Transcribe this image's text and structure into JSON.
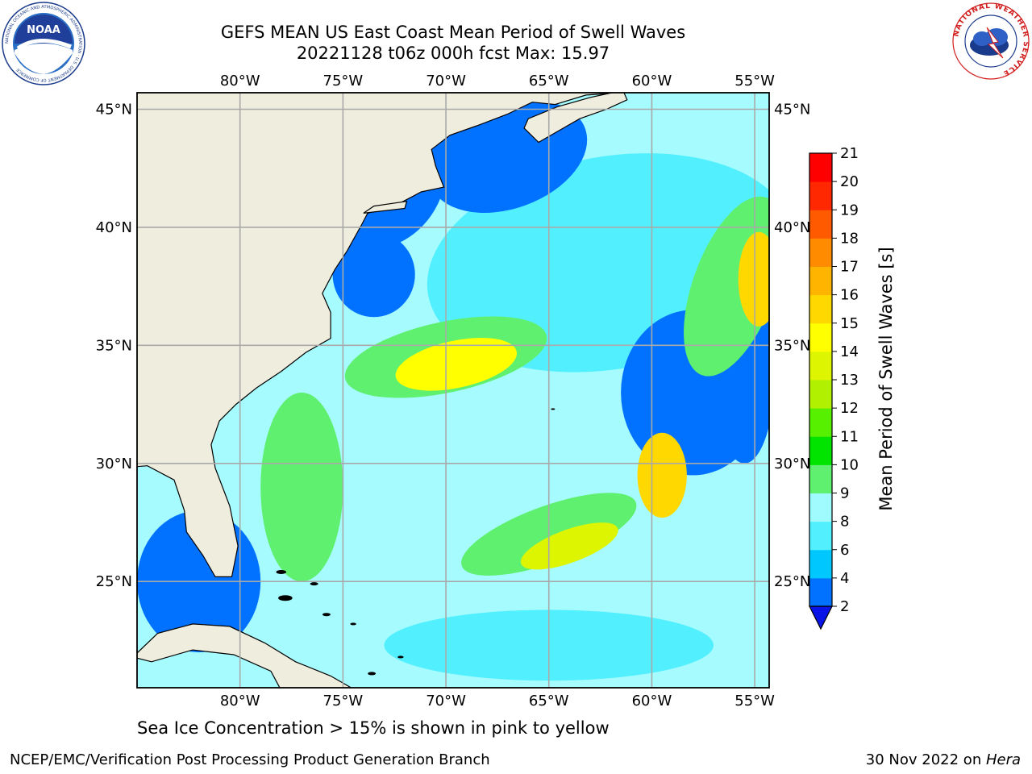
{
  "header": {
    "title_line1": "GEFS MEAN US East Coast Mean Period of Swell Waves",
    "title_line2": "20221128 t06z 000h fcst   Max: 15.97"
  },
  "logos": {
    "left": "noaa-logo",
    "left_text": "NOAA",
    "left_ring_text": "NATIONAL OCEANIC AND ATMOSPHERIC ADMINISTRATION · U.S. DEPARTMENT OF COMMERCE",
    "right": "nws-logo",
    "right_ring_text": "NATIONAL WEATHER SERVICE"
  },
  "map": {
    "lon_labels": [
      "80°W",
      "75°W",
      "70°W",
      "65°W",
      "60°W",
      "55°W"
    ],
    "lat_labels": [
      "45°N",
      "40°N",
      "35°N",
      "30°N",
      "25°N"
    ],
    "lon_values": [
      -80,
      -75,
      -70,
      -65,
      -60,
      -55
    ],
    "lat_values": [
      45,
      40,
      35,
      30,
      25
    ],
    "extent": {
      "lon_min": -85,
      "lon_max": -54.3,
      "lat_min": 20.5,
      "lat_max": 45.7
    },
    "colors": {
      "land": "#eeedde",
      "gridline": "#a9a9a9",
      "coast": "#000000"
    }
  },
  "colorbar": {
    "label": "Mean Period of Swell Waves [s]",
    "ticks": [
      "2",
      "4",
      "6",
      "8",
      "9",
      "10",
      "11",
      "12",
      "13",
      "14",
      "15",
      "16",
      "17",
      "18",
      "19",
      "20",
      "21"
    ],
    "colors": [
      "#0072ff",
      "#00c8ff",
      "#52f0ff",
      "#a0fbff",
      "#60f070",
      "#00e400",
      "#56f000",
      "#b0f000",
      "#ddf500",
      "#ffff00",
      "#ffd800",
      "#ffb400",
      "#ff8c00",
      "#ff5a00",
      "#ff2800",
      "#ff0000"
    ],
    "under_color": "#0a14e6"
  },
  "footer": {
    "note": "Sea Ice Concentration > 15% is shown in pink to yellow",
    "credit": "NCEP/EMC/Verification Post Processing Product Generation Branch",
    "date": "30 Nov 2022 on ",
    "system": "Hera"
  }
}
